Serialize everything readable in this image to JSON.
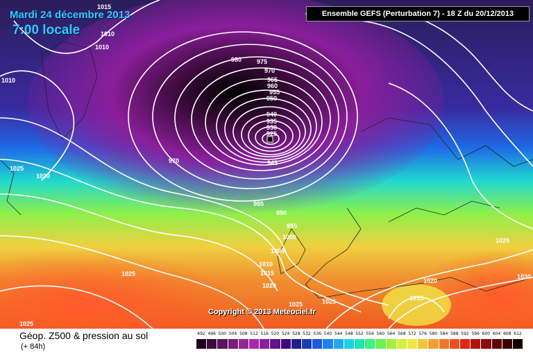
{
  "header": {
    "date": "Mardi 24 décembre 2013",
    "time": "7:00 locale",
    "model_info": "Ensemble GEFS (Perturbation 7)  -  18 Z du 20/12/2013"
  },
  "map": {
    "copyright": "Copyright © 2013 Meteociel.fr",
    "isobar_labels": [
      "1015",
      "1010",
      "1010",
      "1010",
      "980",
      "975",
      "970",
      "965",
      "960",
      "955",
      "950",
      "940",
      "935",
      "930",
      "925",
      "945",
      "970",
      "985",
      "990",
      "995",
      "1000",
      "1005",
      "1010",
      "1015",
      "1020",
      "1025",
      "1025",
      "1020",
      "1025",
      "1025",
      "1025",
      "1025",
      "1020",
      "1015",
      "1030"
    ]
  },
  "legend": {
    "title": "Géop. Z500 & pression au sol",
    "subtitle": "(+ 84h)",
    "scale_values": [
      "492",
      "496",
      "500",
      "504",
      "508",
      "512",
      "516",
      "520",
      "524",
      "528",
      "532",
      "536",
      "540",
      "544",
      "548",
      "552",
      "556",
      "560",
      "564",
      "568",
      "572",
      "576",
      "580",
      "584",
      "588",
      "592",
      "596",
      "600",
      "604",
      "608",
      "612"
    ],
    "scale_colors": [
      "#1e001e",
      "#3c0a3c",
      "#5a145a",
      "#781e78",
      "#962896",
      "#aa28aa",
      "#8c1ea0",
      "#64148c",
      "#3c0a78",
      "#1e1e8c",
      "#1e3cb4",
      "#1e5adc",
      "#1e82f0",
      "#1eaaf0",
      "#1ed2e6",
      "#1ee6b4",
      "#3cf082",
      "#6ef050",
      "#a0f03c",
      "#d2f03c",
      "#f0e646",
      "#f0c83c",
      "#f0a032",
      "#f07828",
      "#f0501e",
      "#dc2814",
      "#b41410",
      "#8c0a0a",
      "#640505",
      "#3c0202",
      "#140000"
    ]
  }
}
